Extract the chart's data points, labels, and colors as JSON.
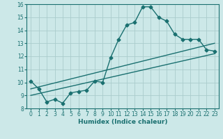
{
  "title": "",
  "xlabel": "Humidex (Indice chaleur)",
  "background_color": "#cce8e8",
  "grid_color": "#aacccc",
  "line_color": "#1a7070",
  "xlim": [
    -0.5,
    23.5
  ],
  "ylim": [
    8,
    16
  ],
  "xticks": [
    0,
    1,
    2,
    3,
    4,
    5,
    6,
    7,
    8,
    9,
    10,
    11,
    12,
    13,
    14,
    15,
    16,
    17,
    18,
    19,
    20,
    21,
    22,
    23
  ],
  "yticks": [
    8,
    9,
    10,
    11,
    12,
    13,
    14,
    15,
    16
  ],
  "main_x": [
    0,
    1,
    2,
    3,
    4,
    5,
    6,
    7,
    8,
    9,
    10,
    11,
    12,
    13,
    14,
    15,
    16,
    17,
    18,
    19,
    20,
    21,
    22,
    23
  ],
  "main_y": [
    10.1,
    9.5,
    8.5,
    8.7,
    8.4,
    9.2,
    9.3,
    9.4,
    10.1,
    10.0,
    11.9,
    13.3,
    14.4,
    14.6,
    15.8,
    15.8,
    15.0,
    14.7,
    13.7,
    13.3,
    13.3,
    13.3,
    12.5,
    12.4
  ],
  "line2_x": [
    0,
    23
  ],
  "line2_y": [
    9.0,
    12.2
  ],
  "line3_x": [
    0,
    23
  ],
  "line3_y": [
    9.5,
    13.0
  ],
  "marker": "D",
  "markersize": 2.5,
  "linewidth": 1.0,
  "tick_fontsize": 5.5,
  "xlabel_fontsize": 6.5
}
